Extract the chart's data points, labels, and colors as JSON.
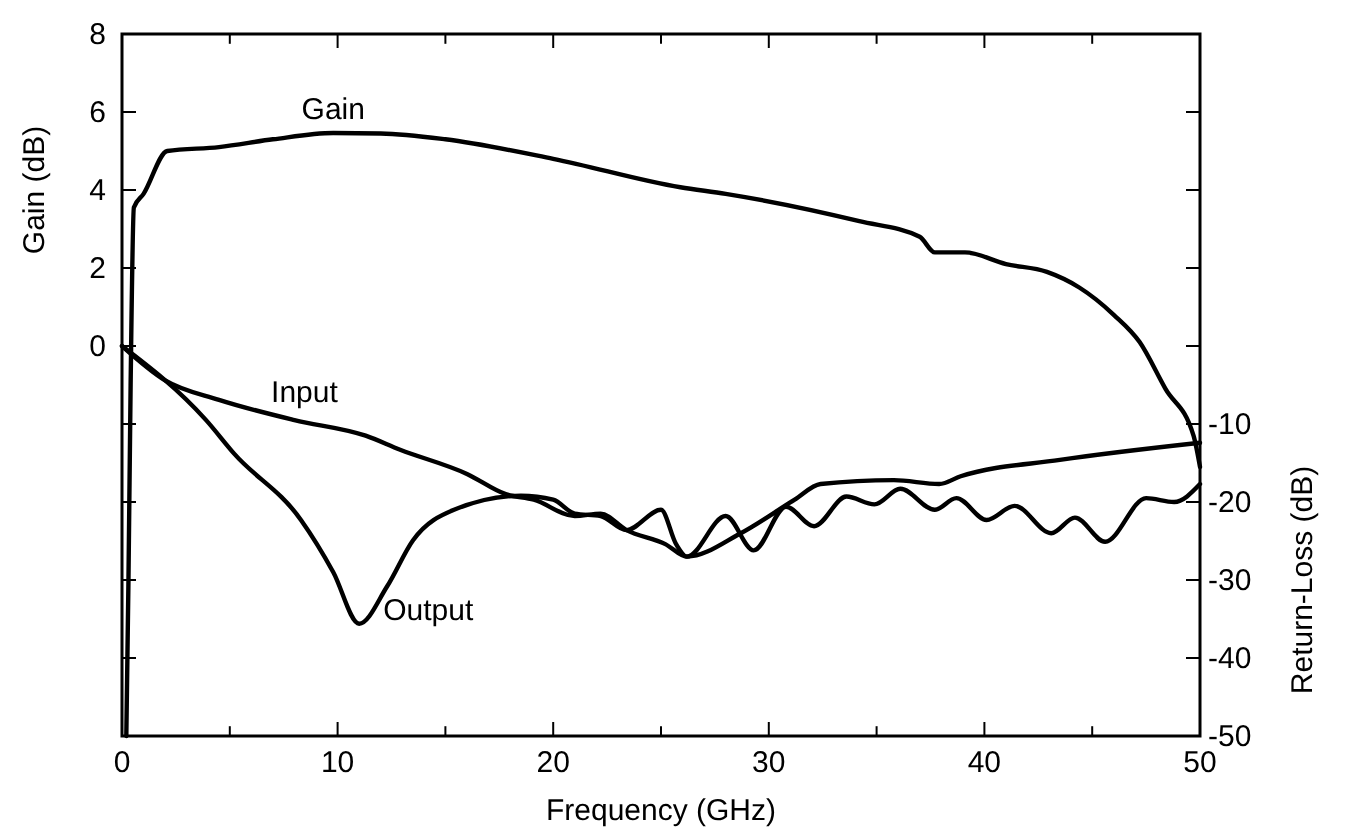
{
  "chart_data": {
    "type": "line",
    "xlabel": "Frequency (GHz)",
    "ylabel": "Gain (dB)",
    "y2label": "Return-Loss (dB)",
    "xlim": [
      0,
      50
    ],
    "xticks": [
      0,
      {
        "value": 5,
        "label": null
      },
      10,
      {
        "value": 15,
        "label": null
      },
      20,
      {
        "value": 25,
        "label": null
      },
      30,
      {
        "value": 35,
        "label": null
      },
      40,
      {
        "value": 45,
        "label": null
      },
      50
    ],
    "ylim": [
      -10,
      8
    ],
    "yticks": [
      {
        "value": -8,
        "label": null
      },
      {
        "value": -6,
        "label": null
      },
      {
        "value": -4,
        "label": null
      },
      {
        "value": -2,
        "label": null
      },
      0,
      2,
      4,
      6,
      8
    ],
    "y2lim": [
      -50,
      40
    ],
    "y2ticks": [
      -50,
      -40,
      -30,
      -20,
      -10,
      {
        "value": 0,
        "label": null
      },
      {
        "value": 10,
        "label": null
      },
      {
        "value": 20,
        "label": null
      },
      {
        "value": 30,
        "label": null
      }
    ],
    "grid": false,
    "marker": "none",
    "line_style": "solid",
    "series": [
      {
        "name": "Gain",
        "color": "#000000",
        "x": [
          0.2,
          0.3,
          0.4,
          0.55,
          1.0,
          2.1,
          4.5,
          7,
          9.8,
          12,
          15,
          20,
          25.9,
          28.0,
          34.2,
          37.0,
          37.7,
          39.1,
          41.0,
          42.9,
          44.4,
          46.0,
          47.2,
          48.4,
          49.7,
          50
        ],
        "values": [
          -10,
          -6,
          -1,
          3.55,
          3.9,
          5.0,
          5.1,
          5.3,
          5.46,
          5.45,
          5.3,
          4.8,
          4.07,
          3.9,
          3.2,
          2.8,
          2.4,
          2.4,
          2.1,
          1.9,
          1.5,
          0.8,
          0.1,
          -1.1,
          -2.3,
          -3.1
        ]
      },
      {
        "name": "Input",
        "color": "#000000",
        "axis": "y2",
        "x": [
          0,
          2.0,
          4.5,
          8.0,
          11.3,
          12.9,
          16.0,
          17.8,
          19.1,
          21.0,
          22.2,
          23.4,
          25.2,
          26.2,
          28.7,
          31.2,
          32.4,
          35.8,
          37.9,
          38.9,
          43.5,
          50
        ],
        "values": [
          0,
          -4.4,
          -6.9,
          -9.5,
          -11.5,
          -13.3,
          -16.4,
          -19,
          -19.7,
          -21.8,
          -21.5,
          -23.6,
          -25.4,
          -27,
          -24,
          -19.7,
          -17.7,
          -17.2,
          -17.7,
          -16.7,
          -14.6,
          -12.4
        ]
      },
      {
        "name": "Output",
        "color": "#000000",
        "axis": "y2",
        "x": [
          0,
          3.9,
          5.2,
          8.3,
          9.8,
          11.0,
          12.3,
          13.5,
          15.4,
          18.5,
          20,
          21,
          22.2,
          23.4,
          25,
          25.7,
          26.2,
          28.0,
          29.3,
          30.8,
          32.1,
          33.6,
          34.9,
          36.1,
          37.7,
          38.7,
          40.1,
          41.4,
          43.1,
          44.2,
          45.6,
          47.5,
          48.8,
          50
        ],
        "values": [
          0,
          -9.5,
          -13.8,
          -22.3,
          -29,
          -35.6,
          -30.8,
          -24.9,
          -21,
          -19.2,
          -19.7,
          -21.5,
          -21.8,
          -23.6,
          -21,
          -25.4,
          -27,
          -21.8,
          -26.2,
          -20.6,
          -23.1,
          -19.3,
          -20.3,
          -18.3,
          -21,
          -19.5,
          -22.3,
          -20.5,
          -24,
          -22,
          -25.1,
          -19.5,
          -20,
          -17.7
        ]
      }
    ]
  }
}
